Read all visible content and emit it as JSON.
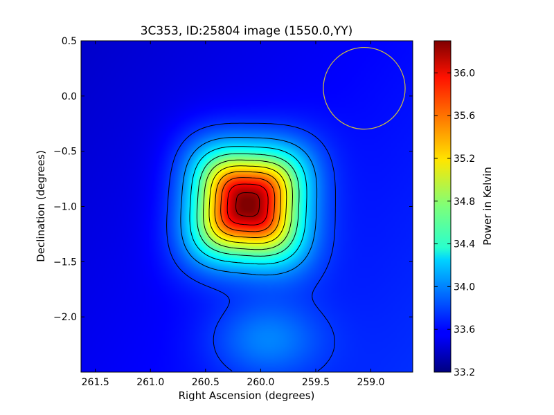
{
  "chart_data": {
    "type": "heatmap",
    "title": "3C353, ID:25804 image (1550.0,YY)",
    "xlabel": "Right Ascension (degrees)",
    "ylabel": "Declination (degrees)",
    "xlim": [
      261.63,
      258.62
    ],
    "ylim": [
      -2.5,
      0.5
    ],
    "x_ticks": [
      261.5,
      261.0,
      260.5,
      260.0,
      259.5,
      259.0
    ],
    "x_tick_labels": [
      "261.5",
      "261.0",
      "260.5",
      "260.0",
      "259.5",
      "259.0"
    ],
    "y_ticks": [
      0.5,
      0.0,
      -0.5,
      -1.0,
      -1.5,
      -2.0
    ],
    "y_tick_labels": [
      "0.5",
      "0.0",
      "−0.5",
      "−1.0",
      "−1.5",
      "−2.0"
    ],
    "colormap": "jet",
    "colorbar": {
      "label": "Power in Kelvin",
      "range": [
        33.2,
        36.3
      ],
      "ticks": [
        36.0,
        35.6,
        35.2,
        34.8,
        34.4,
        34.0,
        33.6,
        33.2
      ],
      "tick_labels": [
        "36.0",
        "35.6",
        "35.2",
        "34.8",
        "34.4",
        "34.0",
        "33.6",
        "33.2"
      ]
    },
    "source": {
      "ra": 260.12,
      "dec": -0.98,
      "peak": 36.3,
      "background": 33.55
    },
    "beam_circle": {
      "ra": 259.06,
      "dec": 0.07,
      "radius_deg": 0.37,
      "color": "#d4c23a"
    },
    "grid": false
  }
}
